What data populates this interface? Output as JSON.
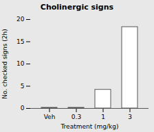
{
  "chart_data": {
    "type": "bar",
    "title": "Cholinergic signs",
    "categories": [
      "Veh",
      "0.3",
      "1",
      "3"
    ],
    "values": [
      0.15,
      0.15,
      4.2,
      18.3
    ],
    "xlabel": "Treatment (mg/kg)",
    "ylabel": "No. checked signs (2h)",
    "ylim": [
      0,
      20
    ],
    "yticks": [
      0,
      5,
      10,
      15,
      20
    ],
    "color": "#ffffff",
    "grid": false
  }
}
